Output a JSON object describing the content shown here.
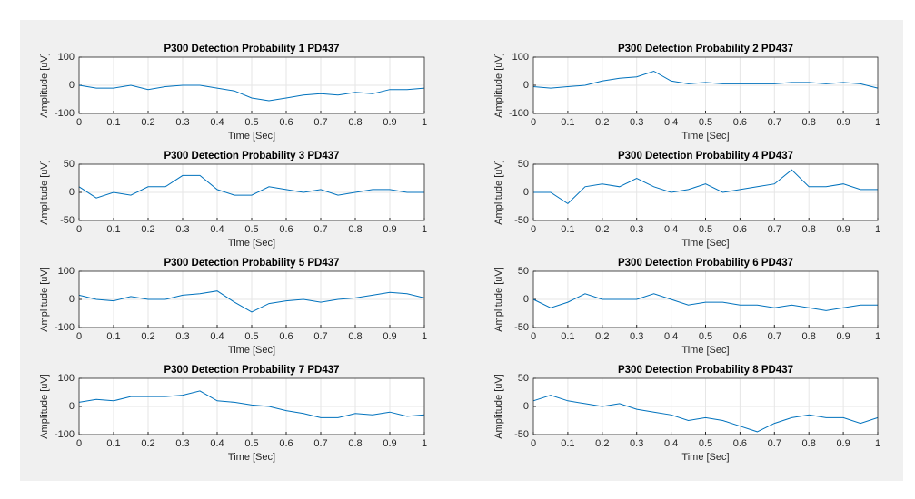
{
  "chart_data": [
    {
      "type": "line",
      "title": "P300 Detection Probability 1 PD437",
      "x_label": "Time [Sec]",
      "y_label": "Amplitude [uV]",
      "x": [
        0,
        0.05,
        0.1,
        0.15,
        0.2,
        0.25,
        0.3,
        0.35,
        0.4,
        0.45,
        0.5,
        0.55,
        0.6,
        0.65,
        0.7,
        0.75,
        0.8,
        0.85,
        0.9,
        0.95,
        1
      ],
      "values": [
        0,
        -10,
        -10,
        0,
        -15,
        -5,
        0,
        0,
        -10,
        -20,
        -45,
        -55,
        -45,
        -35,
        -30,
        -35,
        -25,
        -30,
        -15,
        -15,
        -10
      ],
      "color": "#0072bd",
      "xlim": [
        0,
        1
      ],
      "ylim": [
        -100,
        100
      ],
      "xticks": [
        0,
        0.1,
        0.2,
        0.3,
        0.4,
        0.5,
        0.6,
        0.7,
        0.8,
        0.9,
        1
      ],
      "yticks": [
        -100,
        0,
        100
      ],
      "grid": true
    },
    {
      "type": "line",
      "title": "P300 Detection Probability 2 PD437",
      "x_label": "Time [Sec]",
      "y_label": "Amplitude [uV]",
      "x": [
        0,
        0.05,
        0.1,
        0.15,
        0.2,
        0.25,
        0.3,
        0.35,
        0.4,
        0.45,
        0.5,
        0.55,
        0.6,
        0.65,
        0.7,
        0.75,
        0.8,
        0.85,
        0.9,
        0.95,
        1
      ],
      "values": [
        -5,
        -10,
        -5,
        0,
        15,
        25,
        30,
        50,
        15,
        5,
        10,
        5,
        5,
        5,
        5,
        10,
        10,
        5,
        10,
        5,
        -10
      ],
      "color": "#0072bd",
      "xlim": [
        0,
        1
      ],
      "ylim": [
        -100,
        100
      ],
      "xticks": [
        0,
        0.1,
        0.2,
        0.3,
        0.4,
        0.5,
        0.6,
        0.7,
        0.8,
        0.9,
        1
      ],
      "yticks": [
        -100,
        0,
        100
      ],
      "grid": true
    },
    {
      "type": "line",
      "title": "P300 Detection Probability 3 PD437",
      "x_label": "Time [Sec]",
      "y_label": "Amplitude [uV]",
      "x": [
        0,
        0.05,
        0.1,
        0.15,
        0.2,
        0.25,
        0.3,
        0.35,
        0.4,
        0.45,
        0.5,
        0.55,
        0.6,
        0.65,
        0.7,
        0.75,
        0.8,
        0.85,
        0.9,
        0.95,
        1
      ],
      "values": [
        10,
        -10,
        0,
        -5,
        10,
        10,
        30,
        30,
        5,
        -5,
        -5,
        10,
        5,
        0,
        5,
        -5,
        0,
        5,
        5,
        0,
        0
      ],
      "color": "#0072bd",
      "xlim": [
        0,
        1
      ],
      "ylim": [
        -50,
        50
      ],
      "xticks": [
        0,
        0.1,
        0.2,
        0.3,
        0.4,
        0.5,
        0.6,
        0.7,
        0.8,
        0.9,
        1
      ],
      "yticks": [
        -50,
        0,
        50
      ],
      "grid": true
    },
    {
      "type": "line",
      "title": "P300 Detection Probability 4 PD437",
      "x_label": "Time [Sec]",
      "y_label": "Amplitude [uV]",
      "x": [
        0,
        0.05,
        0.1,
        0.15,
        0.2,
        0.25,
        0.3,
        0.35,
        0.4,
        0.45,
        0.5,
        0.55,
        0.6,
        0.65,
        0.7,
        0.75,
        0.8,
        0.85,
        0.9,
        0.95,
        1
      ],
      "values": [
        0,
        0,
        -20,
        10,
        15,
        10,
        25,
        10,
        0,
        5,
        15,
        0,
        5,
        10,
        15,
        40,
        10,
        10,
        15,
        5,
        5
      ],
      "color": "#0072bd",
      "xlim": [
        0,
        1
      ],
      "ylim": [
        -50,
        50
      ],
      "xticks": [
        0,
        0.1,
        0.2,
        0.3,
        0.4,
        0.5,
        0.6,
        0.7,
        0.8,
        0.9,
        1
      ],
      "yticks": [
        -50,
        0,
        50
      ],
      "grid": true
    },
    {
      "type": "line",
      "title": "P300 Detection Probability 5 PD437",
      "x_label": "Time [Sec]",
      "y_label": "Amplitude [uV]",
      "x": [
        0,
        0.05,
        0.1,
        0.15,
        0.2,
        0.25,
        0.3,
        0.35,
        0.4,
        0.45,
        0.5,
        0.55,
        0.6,
        0.65,
        0.7,
        0.75,
        0.8,
        0.85,
        0.9,
        0.95,
        1
      ],
      "values": [
        15,
        0,
        -5,
        10,
        0,
        0,
        15,
        20,
        30,
        -10,
        -45,
        -15,
        -5,
        0,
        -10,
        0,
        5,
        15,
        25,
        20,
        5
      ],
      "color": "#0072bd",
      "xlim": [
        0,
        1
      ],
      "ylim": [
        -100,
        100
      ],
      "xticks": [
        0,
        0.1,
        0.2,
        0.3,
        0.4,
        0.5,
        0.6,
        0.7,
        0.8,
        0.9,
        1
      ],
      "yticks": [
        -100,
        0,
        100
      ],
      "grid": true
    },
    {
      "type": "line",
      "title": "P300 Detection Probability 6 PD437",
      "x_label": "Time [Sec]",
      "y_label": "Amplitude [uV]",
      "x": [
        0,
        0.05,
        0.1,
        0.15,
        0.2,
        0.25,
        0.3,
        0.35,
        0.4,
        0.45,
        0.5,
        0.55,
        0.6,
        0.65,
        0.7,
        0.75,
        0.8,
        0.85,
        0.9,
        0.95,
        1
      ],
      "values": [
        0,
        -15,
        -5,
        10,
        0,
        0,
        0,
        10,
        0,
        -10,
        -5,
        -5,
        -10,
        -10,
        -15,
        -10,
        -15,
        -20,
        -15,
        -10,
        -10
      ],
      "color": "#0072bd",
      "xlim": [
        0,
        1
      ],
      "ylim": [
        -50,
        50
      ],
      "xticks": [
        0,
        0.1,
        0.2,
        0.3,
        0.4,
        0.5,
        0.6,
        0.7,
        0.8,
        0.9,
        1
      ],
      "yticks": [
        -50,
        0,
        50
      ],
      "grid": true
    },
    {
      "type": "line",
      "title": "P300 Detection Probability 7 PD437",
      "x_label": "Time [Sec]",
      "y_label": "Amplitude [uV]",
      "x": [
        0,
        0.05,
        0.1,
        0.15,
        0.2,
        0.25,
        0.3,
        0.35,
        0.4,
        0.45,
        0.5,
        0.55,
        0.6,
        0.65,
        0.7,
        0.75,
        0.8,
        0.85,
        0.9,
        0.95,
        1
      ],
      "values": [
        15,
        25,
        20,
        35,
        35,
        35,
        40,
        55,
        20,
        15,
        5,
        0,
        -15,
        -25,
        -40,
        -40,
        -25,
        -30,
        -20,
        -35,
        -30
      ],
      "color": "#0072bd",
      "xlim": [
        0,
        1
      ],
      "ylim": [
        -100,
        100
      ],
      "xticks": [
        0,
        0.1,
        0.2,
        0.3,
        0.4,
        0.5,
        0.6,
        0.7,
        0.8,
        0.9,
        1
      ],
      "yticks": [
        -100,
        0,
        100
      ],
      "grid": true
    },
    {
      "type": "line",
      "title": "P300 Detection Probability 8 PD437",
      "x_label": "Time [Sec]",
      "y_label": "Amplitude [uV]",
      "x": [
        0,
        0.05,
        0.1,
        0.15,
        0.2,
        0.25,
        0.3,
        0.35,
        0.4,
        0.45,
        0.5,
        0.55,
        0.6,
        0.65,
        0.7,
        0.75,
        0.8,
        0.85,
        0.9,
        0.95,
        1
      ],
      "values": [
        10,
        20,
        10,
        5,
        0,
        5,
        -5,
        -10,
        -15,
        -25,
        -20,
        -25,
        -35,
        -45,
        -30,
        -20,
        -15,
        -20,
        -20,
        -30,
        -20
      ],
      "color": "#0072bd",
      "xlim": [
        0,
        1
      ],
      "ylim": [
        -50,
        50
      ],
      "xticks": [
        0,
        0.1,
        0.2,
        0.3,
        0.4,
        0.5,
        0.6,
        0.7,
        0.8,
        0.9,
        1
      ],
      "yticks": [
        -50,
        0,
        50
      ],
      "grid": true
    }
  ]
}
